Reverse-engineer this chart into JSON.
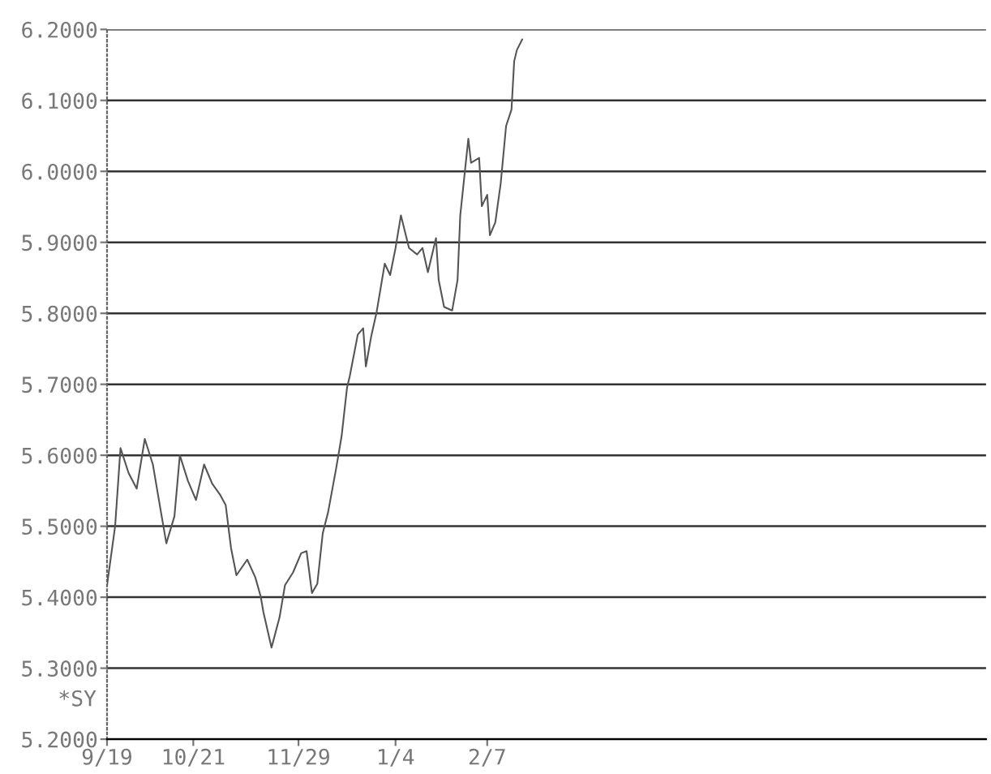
{
  "chart_data": {
    "type": "line",
    "x": [
      "2000-09-19",
      "2000-09-22",
      "2000-09-24",
      "2000-09-27",
      "2000-09-30",
      "2000-10-03",
      "2000-10-06",
      "2000-10-09",
      "2000-10-11",
      "2000-10-14",
      "2000-10-16",
      "2000-10-19",
      "2000-10-22",
      "2000-10-25",
      "2000-10-28",
      "2000-10-31",
      "2000-11-02",
      "2000-11-04",
      "2000-11-06",
      "2000-11-10",
      "2000-11-13",
      "2000-11-15",
      "2000-11-16",
      "2000-11-19",
      "2000-11-22",
      "2000-11-24",
      "2000-11-27",
      "2000-11-30",
      "2000-12-02",
      "2000-12-04",
      "2000-12-06",
      "2000-12-08",
      "2000-12-10",
      "2000-12-13",
      "2000-12-15",
      "2000-12-17",
      "2000-12-18",
      "2000-12-21",
      "2000-12-23",
      "2000-12-24",
      "2000-12-26",
      "2000-12-28",
      "2000-12-31",
      "2001-01-02",
      "2001-01-04",
      "2001-01-06",
      "2001-01-09",
      "2001-01-12",
      "2001-01-14",
      "2001-01-16",
      "2001-01-19",
      "2001-01-20",
      "2001-01-22",
      "2001-01-25",
      "2001-01-27",
      "2001-01-28",
      "2001-01-31",
      "2001-02-01",
      "2001-02-04",
      "2001-02-05",
      "2001-02-07",
      "2001-02-08",
      "2001-02-10",
      "2001-02-12",
      "2001-02-14",
      "2001-02-16",
      "2001-02-17",
      "2001-02-18",
      "2001-02-20"
    ],
    "series": [
      {
        "color": "#555555",
        "values": [
          5.417,
          5.5,
          5.61,
          5.575,
          5.553,
          5.623,
          5.587,
          5.52,
          5.476,
          5.514,
          5.6,
          5.564,
          5.537,
          5.587,
          5.56,
          5.544,
          5.53,
          5.469,
          5.431,
          5.453,
          5.428,
          5.401,
          5.379,
          5.329,
          5.372,
          5.417,
          5.435,
          5.462,
          5.465,
          5.406,
          5.419,
          5.49,
          5.52,
          5.582,
          5.627,
          5.695,
          5.711,
          5.77,
          5.779,
          5.725,
          5.768,
          5.802,
          5.87,
          5.854,
          5.892,
          5.938,
          5.892,
          5.883,
          5.892,
          5.858,
          5.906,
          5.847,
          5.809,
          5.804,
          5.847,
          5.938,
          6.046,
          6.012,
          6.019,
          5.951,
          5.967,
          5.91,
          5.928,
          5.983,
          6.064,
          6.087,
          6.155,
          6.171,
          6.186
        ]
      }
    ],
    "xlim": [
      "2000-09-19",
      "2001-08-11"
    ],
    "xticks": [
      {
        "value": "2000-09-19",
        "label": "9/19"
      },
      {
        "value": "2000-10-21",
        "label": "10/21"
      },
      {
        "value": "2000-11-29",
        "label": "11/29"
      },
      {
        "value": "2001-01-04",
        "label": "1/4"
      },
      {
        "value": "2001-02-07",
        "label": "2/7"
      }
    ],
    "ylim": [
      5.2,
      6.2
    ],
    "yticks": [
      {
        "value": 5.2,
        "label": "5.2000"
      },
      {
        "value": 5.3,
        "label": "5.3000"
      },
      {
        "value": 5.4,
        "label": "5.4000"
      },
      {
        "value": 5.5,
        "label": "5.5000"
      },
      {
        "value": 5.6,
        "label": "5.6000"
      },
      {
        "value": 5.7,
        "label": "5.7000"
      },
      {
        "value": 5.8,
        "label": "5.8000"
      },
      {
        "value": 5.9,
        "label": "5.9000"
      },
      {
        "value": 6.0,
        "label": "6.0000"
      },
      {
        "value": 6.1,
        "label": "6.1000"
      },
      {
        "value": 6.2,
        "label": "6.2000"
      }
    ],
    "grid": "y",
    "annotations": [
      "*SY"
    ]
  }
}
